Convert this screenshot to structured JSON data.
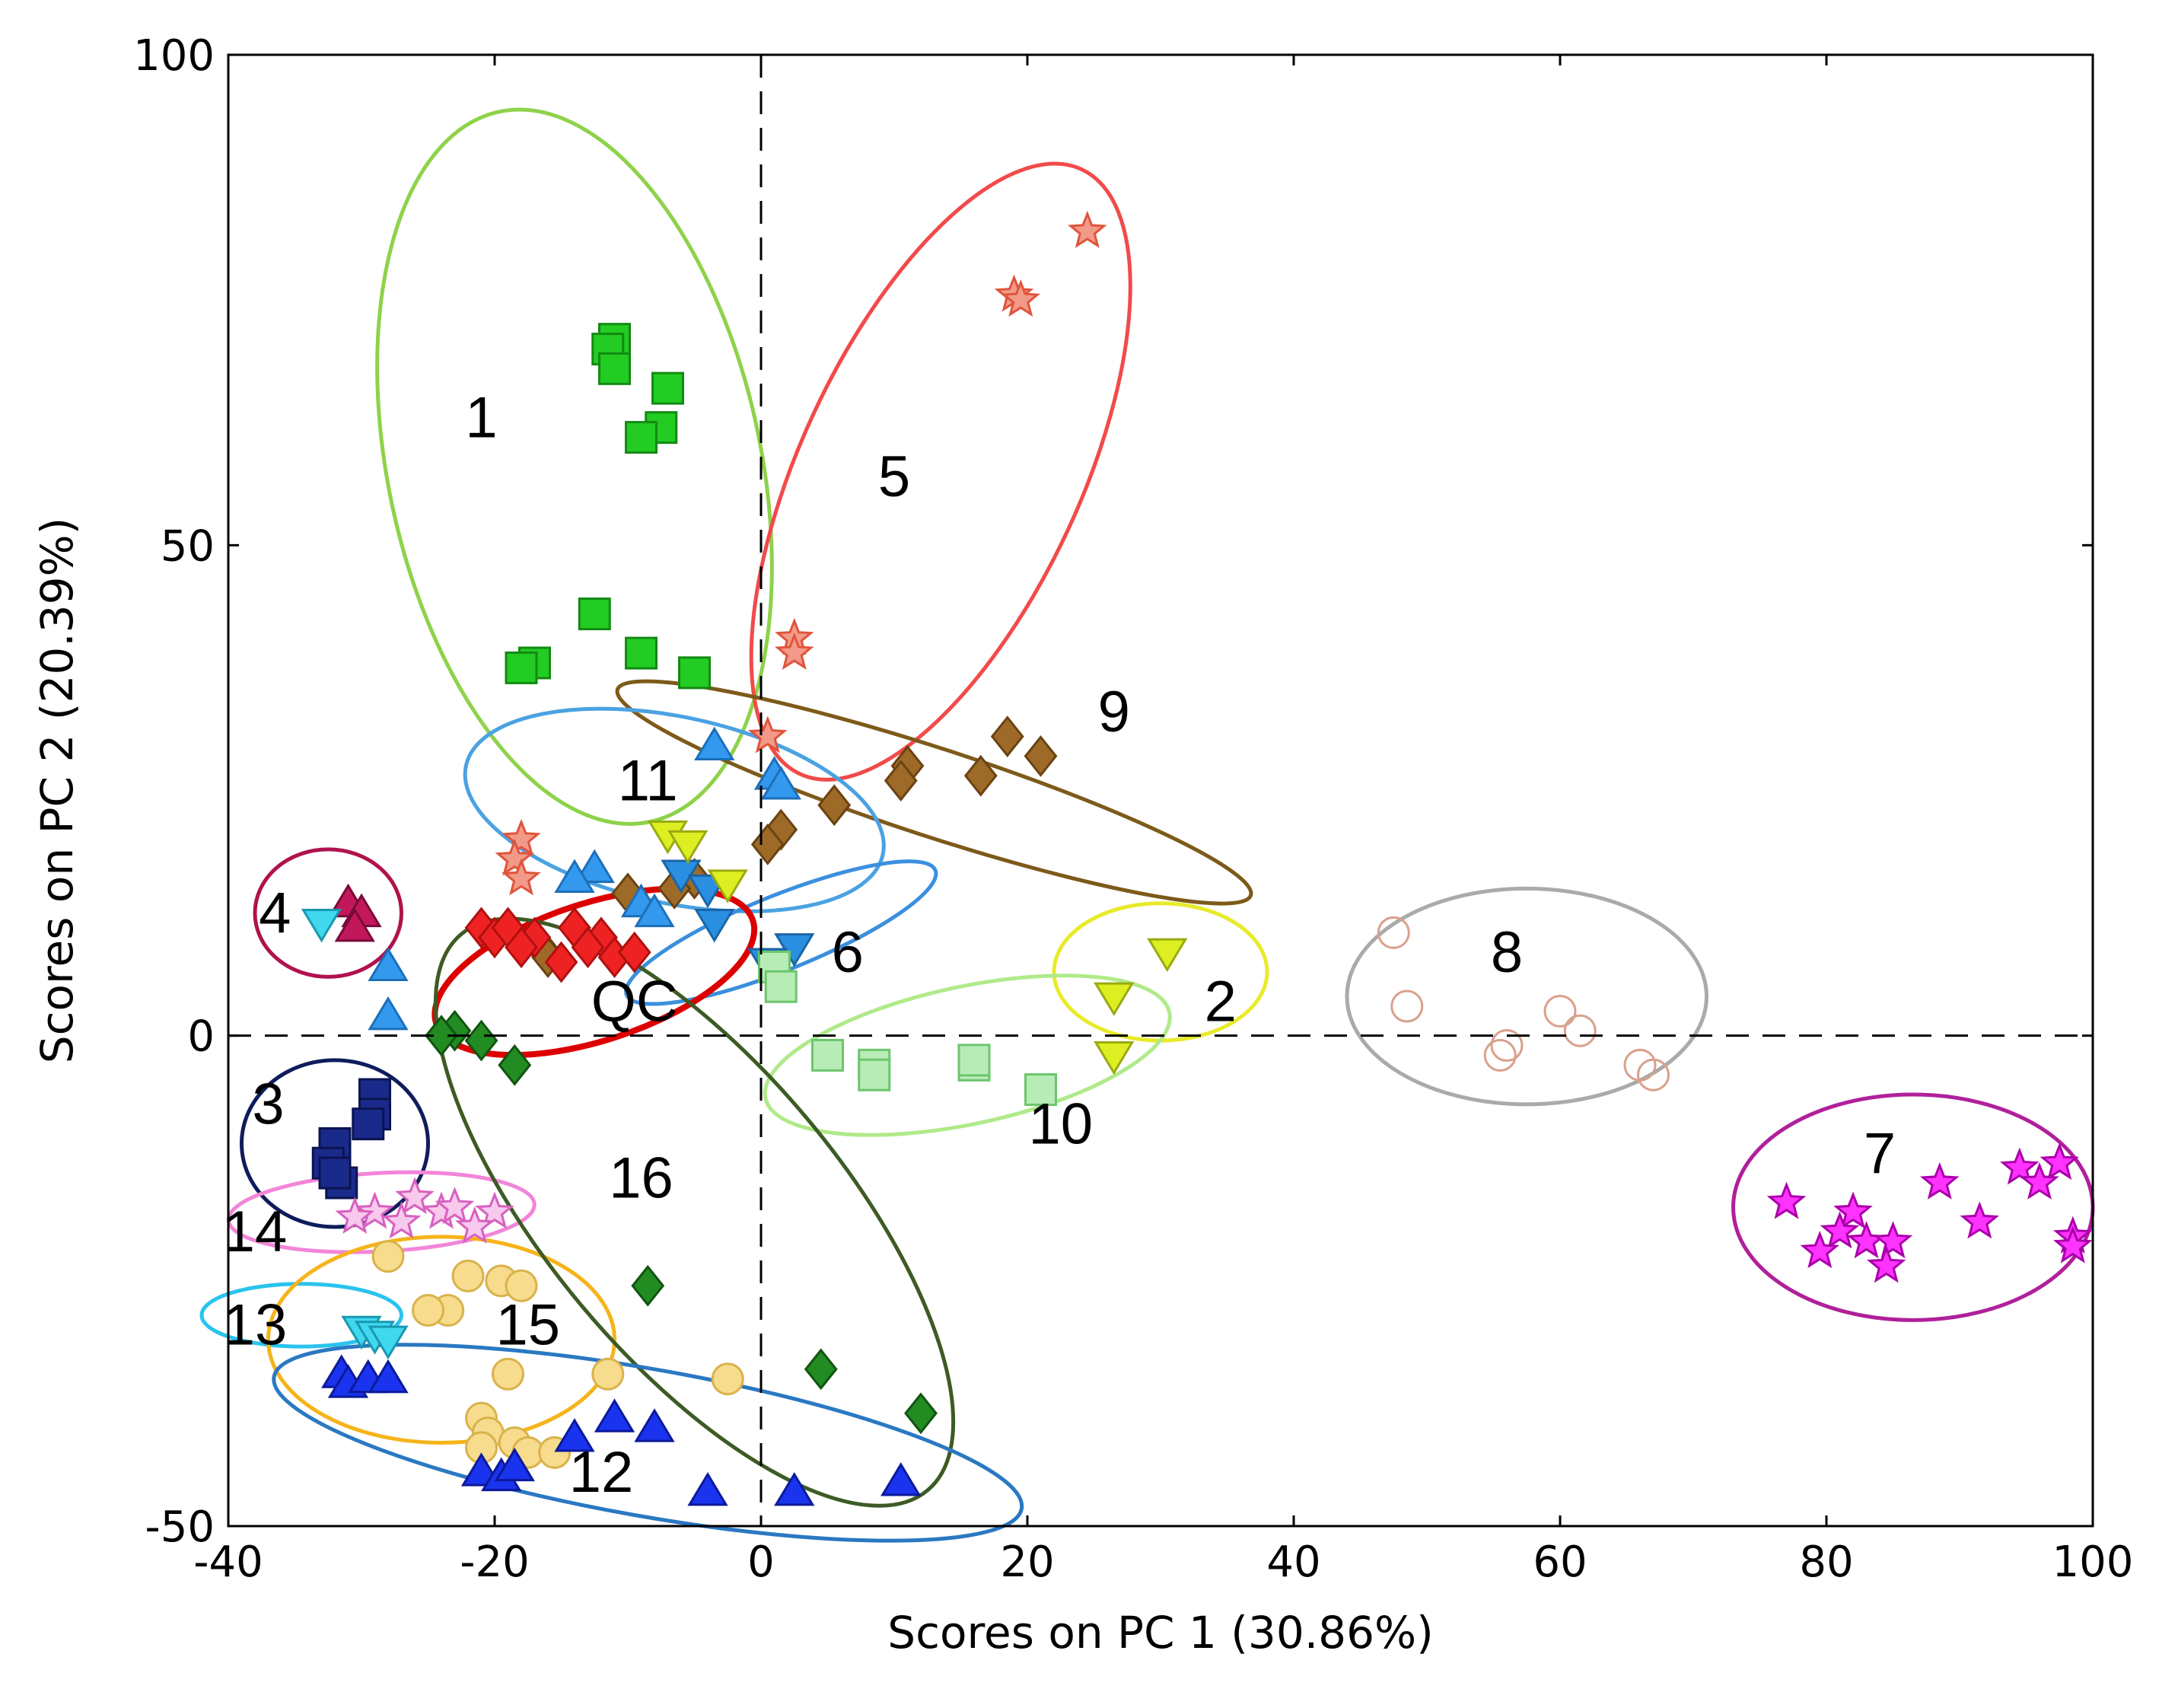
{
  "chart_data": {
    "type": "scatter",
    "title": "",
    "xlabel": "Scores on PC 1 (30.86%)",
    "ylabel": "Scores on PC 2 (20.39%)",
    "xlim": [
      -40,
      100
    ],
    "ylim": [
      -50,
      100
    ],
    "xticks": [
      -40,
      -20,
      0,
      20,
      40,
      60,
      80,
      100
    ],
    "yticks": [
      -50,
      0,
      50,
      100
    ],
    "xtick_labels": [
      "-40",
      "-20",
      "0",
      "20",
      "40",
      "60",
      "80",
      "100"
    ],
    "ytick_labels": [
      "-50",
      "0",
      "50",
      "100"
    ],
    "grid": false,
    "zero_lines": "dashed",
    "groups": [
      {
        "label": "1",
        "marker": "square",
        "color": "#22cc22",
        "stroke": "#138a13",
        "points": [
          [
            -11,
            71
          ],
          [
            -11.5,
            70
          ],
          [
            -11,
            68
          ],
          [
            -7,
            66
          ],
          [
            -7.5,
            62
          ],
          [
            -9,
            61
          ],
          [
            -12.5,
            43
          ],
          [
            -9,
            39
          ],
          [
            -5,
            37
          ],
          [
            -17,
            38
          ],
          [
            -18,
            37.5
          ]
        ],
        "ellipse": {
          "cx": -14,
          "cy": 58,
          "rx": 14,
          "ry": 37,
          "angle": -12,
          "color": "#8ed24a"
        },
        "label_pos": [
          -21,
          61
        ]
      },
      {
        "label": "5",
        "marker": "star-outline",
        "color": "#f29a8a",
        "stroke": "#e0543c",
        "points": [
          [
            24.5,
            82
          ],
          [
            19,
            75.5
          ],
          [
            19.5,
            75
          ],
          [
            2.5,
            40.5
          ],
          [
            2.5,
            39
          ],
          [
            0.5,
            30.5
          ],
          [
            -18,
            20
          ],
          [
            -18.5,
            18
          ],
          [
            -18,
            16
          ]
        ],
        "ellipse": {
          "cx": 13.5,
          "cy": 57.5,
          "rx": 10.5,
          "ry": 34,
          "angle": 25,
          "color": "#f24a4a"
        },
        "label_pos": [
          10,
          55
        ]
      },
      {
        "label": "9",
        "marker": "diamond",
        "color": "#9e6a28",
        "stroke": "#6a4312",
        "points": [
          [
            18.5,
            30.5
          ],
          [
            21,
            28.5
          ],
          [
            11,
            27.5
          ],
          [
            10.5,
            26
          ],
          [
            16.5,
            26.5
          ],
          [
            5.5,
            23.5
          ],
          [
            1.5,
            21
          ],
          [
            0.5,
            19.5
          ],
          [
            -5,
            16
          ],
          [
            -6.5,
            15
          ],
          [
            -10,
            14.5
          ],
          [
            -16.5,
            9
          ],
          [
            -16,
            8
          ]
        ],
        "ellipse": {
          "cx": 13,
          "cy": 24.8,
          "rx": 25,
          "ry": 4.5,
          "angle": 18,
          "color": "#7d5a1a"
        },
        "label_pos": [
          26.5,
          31
        ]
      },
      {
        "label": "11",
        "marker": "triangle-up",
        "color": "#3399ee",
        "stroke": "#1c6fb8",
        "points": [
          [
            -3.5,
            29.5
          ],
          [
            1,
            26.5
          ],
          [
            1.5,
            25.5
          ],
          [
            -12.5,
            17
          ],
          [
            -14,
            16
          ],
          [
            -9,
            13.5
          ],
          [
            -8,
            12.5
          ],
          [
            -28,
            7
          ],
          [
            -28,
            2
          ]
        ],
        "ellipse": {
          "cx": -6.5,
          "cy": 23,
          "rx": 16,
          "ry": 9.5,
          "angle": 12,
          "color": "#4aa2e2"
        },
        "label_pos": [
          -8.5,
          24
        ]
      },
      {
        "label": "6",
        "marker": "triangle-down",
        "color": "#2a8fe0",
        "stroke": "#1b65a6",
        "points": [
          [
            -6,
            16.5
          ],
          [
            -4,
            15
          ],
          [
            -3.5,
            11.5
          ],
          [
            2.5,
            9
          ],
          [
            0.5,
            7.5
          ]
        ],
        "ellipse": {
          "cx": 1.5,
          "cy": 10.5,
          "rx": 12.5,
          "ry": 3.8,
          "angle": -22,
          "color": "#3b8fde"
        },
        "label_pos": [
          6.5,
          6.5
        ]
      },
      {
        "label": "QC",
        "marker": "diamond",
        "color": "#ee2222",
        "stroke": "#b01010",
        "points": [
          [
            -21,
            11
          ],
          [
            -20,
            10
          ],
          [
            -19,
            11
          ],
          [
            -17,
            10
          ],
          [
            -14,
            11
          ],
          [
            -12,
            10
          ],
          [
            -13,
            9
          ],
          [
            -15,
            7.5
          ],
          [
            -11,
            8
          ],
          [
            -9.5,
            8.5
          ],
          [
            -18,
            9
          ]
        ],
        "ellipse": {
          "cx": -12.5,
          "cy": 6.5,
          "rx": 12.5,
          "ry": 7,
          "angle": -18,
          "color": "#dd0000"
        },
        "label_pos": [
          -9.5,
          1.5
        ]
      },
      {
        "label": "2",
        "marker": "triangle-down",
        "color": "#ddee22",
        "stroke": "#9aaa10",
        "points": [
          [
            30.5,
            8.5
          ],
          [
            26.5,
            4
          ],
          [
            26.5,
            -2
          ],
          [
            -7,
            20.5
          ],
          [
            -5.5,
            19.5
          ],
          [
            -2.5,
            15.5
          ]
        ],
        "ellipse": {
          "cx": 30,
          "cy": 6.5,
          "rx": 8,
          "ry": 7,
          "angle": 0,
          "color": "#e8ea2a"
        },
        "label_pos": [
          34.5,
          1.5
        ]
      },
      {
        "label": "8",
        "marker": "circle-outline",
        "color": "none",
        "stroke": "#d9a08c",
        "points": [
          [
            47.5,
            10.5
          ],
          [
            48.5,
            3
          ],
          [
            60,
            2.5
          ],
          [
            61.5,
            0.5
          ],
          [
            56,
            -1
          ],
          [
            55.5,
            -2
          ],
          [
            66,
            -3
          ],
          [
            67,
            -4
          ]
        ],
        "ellipse": {
          "cx": 57.5,
          "cy": 4,
          "rx": 13.5,
          "ry": 11,
          "angle": 0,
          "color": "#aaaaaa"
        },
        "label_pos": [
          56,
          6.5
        ]
      },
      {
        "label": "10",
        "marker": "square",
        "color": "#b7ecb7",
        "stroke": "#6cc66c",
        "points": [
          [
            1,
            7
          ],
          [
            1.5,
            5
          ],
          [
            5,
            -2
          ],
          [
            8.5,
            -3
          ],
          [
            8.5,
            -4
          ],
          [
            16,
            -3
          ],
          [
            16,
            -2.5
          ],
          [
            21,
            -5.5
          ]
        ],
        "ellipse": {
          "cx": 15.5,
          "cy": -2,
          "rx": 15.5,
          "ry": 7,
          "angle": -12,
          "color": "#b0ea8a"
        },
        "label_pos": [
          22.5,
          -11
        ]
      },
      {
        "label": "4",
        "marker": "triangle-up",
        "color": "#c2185b",
        "stroke": "#7a0a38",
        "points": [
          [
            -31,
            13.5
          ],
          [
            -30,
            12.5
          ],
          [
            -30.5,
            11
          ]
        ],
        "ellipse": {
          "cx": -32.5,
          "cy": 12.5,
          "rx": 5.5,
          "ry": 6.5,
          "angle": 0,
          "color": "#b0124e"
        },
        "label_pos": [
          -36.5,
          10.5
        ]
      },
      {
        "label": "3",
        "marker": "square",
        "color": "#1a2a8a",
        "stroke": "#0a1450",
        "points": [
          [
            -29,
            -6
          ],
          [
            -29,
            -8
          ],
          [
            -29.5,
            -9
          ],
          [
            -32,
            -11
          ],
          [
            -32.5,
            -13
          ],
          [
            -31.5,
            -15
          ],
          [
            -32,
            -14
          ]
        ],
        "ellipse": {
          "cx": -32,
          "cy": -11,
          "rx": 7,
          "ry": 8.5,
          "angle": 0,
          "color": "#0f1c5c"
        },
        "label_pos": [
          -37,
          -9
        ]
      },
      {
        "label": "14",
        "marker": "star-outline",
        "color": "#f7c9ec",
        "stroke": "#d860c0",
        "points": [
          [
            -26,
            -16.5
          ],
          [
            -24,
            -18
          ],
          [
            -23,
            -17.5
          ],
          [
            -20,
            -18
          ],
          [
            -29,
            -18
          ],
          [
            -27,
            -19
          ],
          [
            -21.5,
            -19.5
          ],
          [
            -30.5,
            -18.5
          ]
        ],
        "ellipse": {
          "cx": -28.5,
          "cy": -18,
          "rx": 11.5,
          "ry": 4,
          "angle": -3,
          "color": "#f285d8"
        },
        "label_pos": [
          -38,
          -22
        ]
      },
      {
        "label": "13",
        "marker": "triangle-down",
        "color": "#40d8ee",
        "stroke": "#1898b0",
        "points": [
          [
            -30,
            -30
          ],
          [
            -29,
            -30.5
          ],
          [
            -28,
            -31
          ],
          [
            -33,
            11.5
          ]
        ],
        "ellipse": {
          "cx": -34.5,
          "cy": -28.5,
          "rx": 7.5,
          "ry": 3.2,
          "angle": 0,
          "color": "#2ac3ee"
        },
        "label_pos": [
          -38,
          -31.5
        ]
      },
      {
        "label": "15",
        "marker": "circle",
        "color": "#f7dc8e",
        "stroke": "#d9b24a",
        "points": [
          [
            -28,
            -22.5
          ],
          [
            -22,
            -24.5
          ],
          [
            -19.5,
            -25
          ],
          [
            -18,
            -25.5
          ],
          [
            -23.5,
            -28
          ],
          [
            -25,
            -28
          ],
          [
            -19,
            -34.5
          ],
          [
            -11.5,
            -34.5
          ],
          [
            -2.5,
            -35
          ],
          [
            -21,
            -39
          ],
          [
            -20.5,
            -40.5
          ],
          [
            -18.5,
            -41.5
          ],
          [
            -17.5,
            -42.5
          ],
          [
            -15.5,
            -42.5
          ],
          [
            -21,
            -42
          ]
        ],
        "ellipse": {
          "cx": -24,
          "cy": -31,
          "rx": 13,
          "ry": 10.5,
          "angle": 0,
          "color": "#f5b41a"
        },
        "label_pos": [
          -17.5,
          -31.5
        ]
      },
      {
        "label": "16",
        "marker": "diamond",
        "color": "#228b22",
        "stroke": "#115511",
        "points": [
          [
            -23,
            0.5
          ],
          [
            -24,
            0
          ],
          [
            -21,
            -0.5
          ],
          [
            -18.5,
            -3
          ],
          [
            -8.5,
            -25.5
          ],
          [
            4.5,
            -34
          ],
          [
            12,
            -38.5
          ]
        ],
        "ellipse": {
          "cx": -5,
          "cy": -18,
          "rx": 11,
          "ry": 37,
          "angle": -40,
          "color": "#3d5b24"
        },
        "label_pos": [
          -9,
          -16.5
        ]
      },
      {
        "label": "12",
        "marker": "triangle-up",
        "color": "#1a33ee",
        "stroke": "#0b1a9a",
        "points": [
          [
            -31.5,
            -34.5
          ],
          [
            -31,
            -35.5
          ],
          [
            -29.5,
            -35
          ],
          [
            -28,
            -35
          ],
          [
            -14,
            -41
          ],
          [
            -11,
            -39
          ],
          [
            -8,
            -40
          ],
          [
            -21,
            -44.5
          ],
          [
            -19.5,
            -45
          ],
          [
            -18.5,
            -44
          ],
          [
            -4,
            -46.5
          ],
          [
            2.5,
            -46.5
          ],
          [
            10.5,
            -45.5
          ]
        ],
        "ellipse": {
          "cx": -8.5,
          "cy": -41.5,
          "rx": 28.5,
          "ry": 7.5,
          "angle": 10,
          "color": "#2a78c2"
        },
        "label_pos": [
          -12,
          -46.5
        ]
      },
      {
        "label": "7",
        "marker": "star",
        "color": "#ff33ff",
        "stroke": "#aa00aa",
        "points": [
          [
            77,
            -17
          ],
          [
            88.5,
            -15
          ],
          [
            94.5,
            -13.5
          ],
          [
            97.5,
            -13
          ],
          [
            96,
            -15
          ],
          [
            82,
            -18
          ],
          [
            81,
            -20
          ],
          [
            79.5,
            -22
          ],
          [
            83,
            -21
          ],
          [
            85,
            -21
          ],
          [
            84.5,
            -23.5
          ],
          [
            91.5,
            -19
          ],
          [
            98.5,
            -20.5
          ],
          [
            98.5,
            -21.5
          ]
        ],
        "ellipse": {
          "cx": 86.5,
          "cy": -17.5,
          "rx": 13.5,
          "ry": 11.5,
          "angle": 0,
          "color": "#b0209a"
        },
        "label_pos": [
          84,
          -14
        ]
      }
    ]
  }
}
